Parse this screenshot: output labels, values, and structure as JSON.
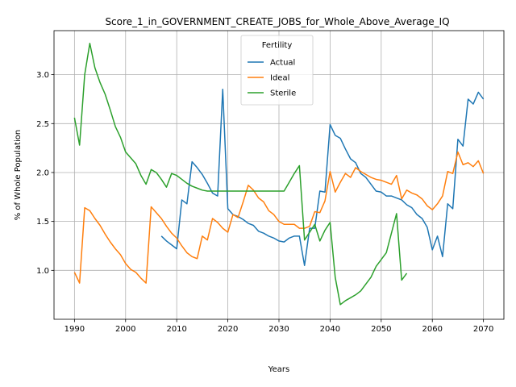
{
  "chart_data": {
    "type": "line",
    "title": "Score_1_in_GOVERNMENT_CREATE_JOBS_for_Whole_Above_Average_IQ",
    "xlabel": "Years",
    "ylabel": "% of Whole Population",
    "xlim": [
      1986.0,
      2074.0
    ],
    "ylim": [
      0.5,
      3.45
    ],
    "xticks": [
      1990,
      2000,
      2010,
      2020,
      2030,
      2040,
      2050,
      2060,
      2070
    ],
    "yticks": [
      1.0,
      1.5,
      2.0,
      2.5,
      3.0
    ],
    "grid": true,
    "legend": {
      "title": "Fertility",
      "position": "top-center"
    },
    "series": [
      {
        "name": "Actual",
        "color": "#1f77b4",
        "x": [
          2007,
          2008,
          2009,
          2010,
          2011,
          2012,
          2013,
          2014,
          2015,
          2016,
          2017,
          2018,
          2019,
          2020,
          2021,
          2022,
          2023,
          2024,
          2025,
          2026,
          2027,
          2028,
          2029,
          2030,
          2031,
          2032,
          2033,
          2034,
          2035,
          2036,
          2037,
          2038,
          2039,
          2040,
          2041,
          2042,
          2043,
          2044,
          2045,
          2046,
          2047,
          2048,
          2049,
          2050,
          2051,
          2052,
          2053,
          2054,
          2055,
          2056,
          2057,
          2058,
          2059,
          2060,
          2061,
          2062,
          2063,
          2064,
          2065,
          2066,
          2067,
          2068,
          2069,
          2070
        ],
        "y": [
          1.35,
          1.3,
          1.26,
          1.22,
          1.72,
          1.68,
          2.11,
          2.05,
          1.98,
          1.89,
          1.79,
          1.76,
          2.85,
          1.63,
          1.57,
          1.55,
          1.52,
          1.48,
          1.46,
          1.4,
          1.38,
          1.35,
          1.33,
          1.3,
          1.29,
          1.33,
          1.35,
          1.35,
          1.05,
          1.43,
          1.43,
          1.81,
          1.8,
          2.49,
          2.38,
          2.35,
          2.24,
          2.14,
          2.1,
          1.99,
          1.95,
          1.88,
          1.81,
          1.8,
          1.76,
          1.76,
          1.74,
          1.72,
          1.67,
          1.64,
          1.57,
          1.53,
          1.44,
          1.21,
          1.35,
          1.14,
          1.68,
          1.63,
          2.34,
          2.27,
          2.75,
          2.7,
          2.82,
          2.75
        ]
      },
      {
        "name": "Ideal",
        "color": "#ff7f0e",
        "x": [
          1990,
          1991,
          1992,
          1993,
          1994,
          1995,
          1996,
          1997,
          1998,
          1999,
          2000,
          2001,
          2002,
          2003,
          2004,
          2005,
          2006,
          2007,
          2008,
          2009,
          2010,
          2011,
          2012,
          2013,
          2014,
          2015,
          2016,
          2017,
          2018,
          2019,
          2020,
          2021,
          2022,
          2023,
          2024,
          2025,
          2026,
          2027,
          2028,
          2029,
          2030,
          2031,
          2032,
          2033,
          2034,
          2035,
          2036,
          2037,
          2038,
          2039,
          2040,
          2041,
          2042,
          2043,
          2044,
          2045,
          2046,
          2047,
          2048,
          2049,
          2050,
          2051,
          2052,
          2053,
          2054,
          2055,
          2056,
          2057,
          2058,
          2059,
          2060,
          2061,
          2062,
          2063,
          2064,
          2065,
          2066,
          2067,
          2068,
          2069,
          2070
        ],
        "y": [
          0.98,
          0.87,
          1.64,
          1.61,
          1.53,
          1.46,
          1.37,
          1.29,
          1.22,
          1.16,
          1.07,
          1.01,
          0.98,
          0.92,
          0.87,
          1.65,
          1.59,
          1.53,
          1.45,
          1.38,
          1.33,
          1.25,
          1.18,
          1.14,
          1.12,
          1.35,
          1.31,
          1.53,
          1.49,
          1.43,
          1.39,
          1.57,
          1.54,
          1.7,
          1.87,
          1.82,
          1.74,
          1.7,
          1.61,
          1.57,
          1.5,
          1.47,
          1.47,
          1.47,
          1.43,
          1.43,
          1.45,
          1.6,
          1.59,
          1.71,
          2.01,
          1.8,
          1.9,
          1.99,
          1.95,
          2.05,
          2.01,
          1.98,
          1.95,
          1.93,
          1.92,
          1.9,
          1.88,
          1.97,
          1.73,
          1.82,
          1.79,
          1.77,
          1.73,
          1.66,
          1.62,
          1.68,
          1.76,
          2.01,
          1.99,
          2.21,
          2.08,
          2.1,
          2.06,
          2.12,
          1.99
        ]
      },
      {
        "name": "Sterile",
        "color": "#2ca02c",
        "x": [
          1990,
          1991,
          1992,
          1993,
          1994,
          1995,
          1996,
          1997,
          1998,
          1999,
          2000,
          2001,
          2002,
          2003,
          2004,
          2005,
          2006,
          2007,
          2008,
          2009,
          2010,
          2011,
          2012,
          2013,
          2014,
          2015,
          2016,
          2017,
          2018,
          2019,
          2020,
          2021,
          2022,
          2023,
          2024,
          2025,
          2026,
          2027,
          2028,
          2029,
          2030,
          2031,
          2032,
          2033,
          2034,
          2035,
          2036,
          2037,
          2038,
          2039,
          2040,
          2041,
          2042,
          2043,
          2044,
          2045,
          2046,
          2047,
          2048,
          2049,
          2050,
          2051,
          2052,
          2053,
          2054,
          2055
        ],
        "y": [
          2.56,
          2.28,
          3.0,
          3.32,
          3.07,
          2.92,
          2.8,
          2.64,
          2.47,
          2.36,
          2.21,
          2.15,
          2.09,
          1.97,
          1.88,
          2.03,
          2.0,
          1.93,
          1.85,
          1.99,
          1.97,
          1.93,
          1.89,
          1.86,
          1.84,
          1.82,
          1.81,
          1.81,
          1.81,
          1.81,
          1.81,
          1.81,
          1.81,
          1.81,
          1.81,
          1.81,
          1.81,
          1.81,
          1.81,
          1.81,
          1.81,
          1.81,
          1.9,
          1.99,
          2.07,
          1.31,
          1.39,
          1.47,
          1.3,
          1.41,
          1.49,
          0.93,
          0.65,
          0.69,
          0.72,
          0.75,
          0.79,
          0.86,
          0.93,
          1.04,
          1.11,
          1.18,
          1.38,
          1.58,
          0.9,
          0.97
        ]
      }
    ]
  }
}
